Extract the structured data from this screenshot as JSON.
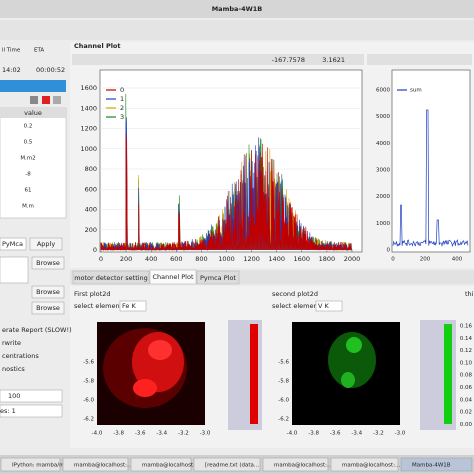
{
  "window": {
    "title": "Mamba-4W1B"
  },
  "left": {
    "time_header": "ll Time",
    "eta_header": "ETA",
    "time": "14:02",
    "eta": "00:00:52",
    "value_header": "value",
    "rows": [
      "0.2",
      "0.5",
      "M.m2",
      "-8",
      "61",
      "M.m"
    ],
    "pymca": "PyMca",
    "apply": "Apply",
    "browse": [
      "Browse",
      "Browse",
      "Browse"
    ],
    "options": [
      "erate Report (SLOW!)",
      "rwrite",
      "centrations",
      "nostics"
    ],
    "count": "100",
    "es": "es: 1"
  },
  "channel_plot": {
    "title": "Channel Plot",
    "coord_x": "-167.7578",
    "coord_y": "3.1621",
    "legend": [
      "0",
      "1",
      "2",
      "3"
    ],
    "legend_colors": [
      "#c00000",
      "#1f3fbf",
      "#d4a000",
      "#1a8a1a"
    ],
    "xticks": [
      "0",
      "200",
      "400",
      "600",
      "800",
      "1000",
      "1200",
      "1400",
      "1600",
      "1800",
      "2000"
    ],
    "yticks": [
      "0",
      "200",
      "400",
      "600",
      "800",
      "1000",
      "1200",
      "1400",
      "1600"
    ],
    "sum_legend": "sum",
    "sum_yticks": [
      "0",
      "1000",
      "2000",
      "3000",
      "4000",
      "5000",
      "6000"
    ],
    "sum_xticks": [
      "0",
      "200",
      "400"
    ]
  },
  "tabs": [
    "motor detector setting",
    "Channel Plot",
    "Pymca Plot"
  ],
  "plot2d": [
    {
      "title": "First plot2d",
      "select": "select element",
      "element": "Fe K",
      "xticks": [
        "-4.0",
        "-3.8",
        "-3.6",
        "-3.4",
        "-3.2",
        "-3.0"
      ],
      "yticks": [
        "-5.6",
        "-5.8",
        "-6.0",
        "-6.2"
      ]
    },
    {
      "title": "second plot2d",
      "select": "select element",
      "element": "V K",
      "xticks": [
        "-4.0",
        "-3.8",
        "-3.6",
        "-3.4",
        "-3.2",
        "-3.0"
      ],
      "yticks": [
        "-5.6",
        "-5.8",
        "-6.0",
        "-6.2"
      ],
      "cbar_ticks": [
        "0.16",
        "0.14",
        "0.12",
        "0.10",
        "0.08",
        "0.06",
        "0.04",
        "0.02",
        "0.00"
      ]
    }
  ],
  "third_title": "thi",
  "taskbar": [
    "IPython: mamba/m...",
    "mamba@localhost:...",
    "mamba@localhost:...",
    "[readme.txt (data...",
    "mamba@localhost:...",
    "mamba@localhost:...",
    "Mamba-4W1B"
  ]
}
